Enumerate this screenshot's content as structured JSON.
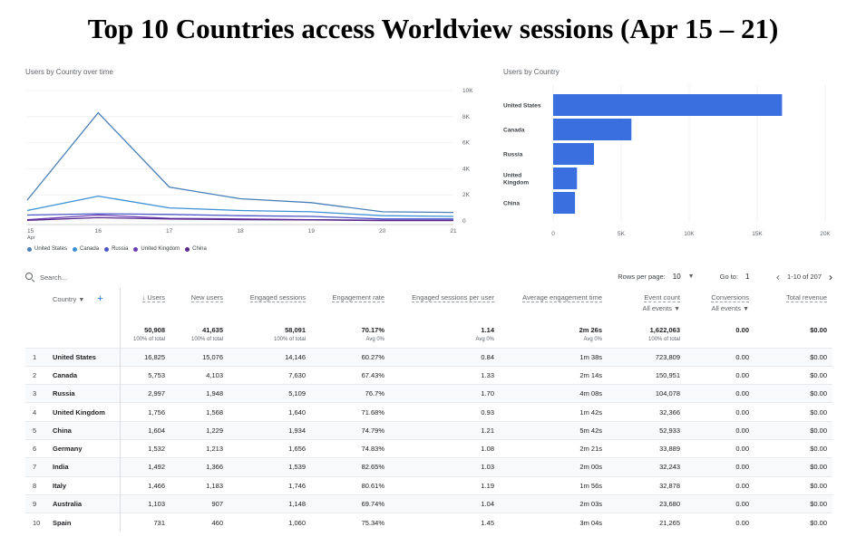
{
  "page_title": "Top 10 Countries access Worldview sessions (Apr 15 – 21)",
  "line_chart": {
    "title": "Users by Country over time",
    "x_labels": [
      "15",
      "16",
      "17",
      "18",
      "19",
      "20",
      "21"
    ],
    "x_sub_label": "Apr",
    "y_labels": [
      "10K",
      "8K",
      "6K",
      "4K",
      "2K",
      "0"
    ]
  },
  "bar_chart_title": "Users by Country",
  "legend": [
    {
      "name": "United States",
      "color": "#4a7fb8"
    },
    {
      "name": "Canada",
      "color": "#3b8fd6"
    },
    {
      "name": "Russia",
      "color": "#4b56c7"
    },
    {
      "name": "United Kingdom",
      "color": "#6a3fb5"
    },
    {
      "name": "China",
      "color": "#5a2a8a"
    }
  ],
  "chart_data": [
    {
      "type": "line",
      "title": "Users by Country over time",
      "x": [
        "Apr 15",
        "Apr 16",
        "Apr 17",
        "Apr 18",
        "Apr 19",
        "Apr 20",
        "Apr 21"
      ],
      "ylim": [
        0,
        10000
      ],
      "y_ticks": [
        0,
        2000,
        4000,
        6000,
        8000,
        10000
      ],
      "grid": true,
      "legend_placement": "bottom-left",
      "series": [
        {
          "name": "United States",
          "color": "#4a7fb8",
          "values": [
            1600,
            8300,
            2600,
            1700,
            1400,
            700,
            650
          ]
        },
        {
          "name": "Canada",
          "color": "#3b8fd6",
          "values": [
            800,
            1900,
            1000,
            800,
            700,
            400,
            350
          ]
        },
        {
          "name": "Russia",
          "color": "#4b56c7",
          "values": [
            450,
            550,
            500,
            400,
            350,
            150,
            150
          ]
        },
        {
          "name": "United Kingdom",
          "color": "#6a3fb5",
          "values": [
            100,
            450,
            200,
            150,
            100,
            50,
            50
          ]
        },
        {
          "name": "China",
          "color": "#5a2a8a",
          "values": [
            50,
            250,
            150,
            100,
            80,
            30,
            30
          ]
        }
      ]
    },
    {
      "type": "bar",
      "orientation": "horizontal",
      "title": "Users by Country",
      "categories": [
        "United States",
        "Canada",
        "Russia",
        "United Kingdom",
        "China"
      ],
      "category_labels": [
        [
          "United States"
        ],
        [
          "Canada"
        ],
        [
          "Russia"
        ],
        [
          "United",
          "Kingdom"
        ],
        [
          "China"
        ]
      ],
      "values": [
        16825,
        5753,
        2997,
        1756,
        1604
      ],
      "xlim": [
        0,
        20000
      ],
      "x_ticks": [
        0,
        5000,
        10000,
        15000,
        20000
      ],
      "x_tick_labels": [
        "0",
        "5K",
        "10K",
        "15K",
        "20K"
      ],
      "bar_color": "#3a6fe0"
    }
  ],
  "toolbar": {
    "search_placeholder": "Search...",
    "rows_per_page_label": "Rows per page:",
    "rows_per_page_value": "10",
    "goto_label": "Go to:",
    "goto_value": "1",
    "range_label": "1-10 of 207"
  },
  "table": {
    "headers": {
      "country": "Country",
      "users": "↓ Users",
      "new_users": "New users",
      "engaged_sessions": "Engaged sessions",
      "engagement_rate": "Engagement rate",
      "engaged_per_user": "Engaged sessions per user",
      "avg_engagement": "Average engagement time",
      "event_count": "Event count",
      "event_count_sub": "All events",
      "conversions": "Conversions",
      "conversions_sub": "All events",
      "total_revenue": "Total revenue"
    },
    "totals": {
      "users": "50,908",
      "users_sub": "100% of total",
      "new_users": "41,635",
      "new_users_sub": "100% of total",
      "engaged_sessions": "58,091",
      "engaged_sessions_sub": "100% of total",
      "engagement_rate": "70.17%",
      "engagement_rate_sub": "Avg 0%",
      "engaged_per_user": "1.14",
      "engaged_per_user_sub": "Avg 0%",
      "avg_engagement": "2m 26s",
      "avg_engagement_sub": "Avg 0%",
      "event_count": "1,622,063",
      "event_count_sub": "100% of total",
      "conversions": "0.00",
      "total_revenue": "$0.00"
    },
    "rows": [
      {
        "idx": "1",
        "country": "United States",
        "users": "16,825",
        "new_users": "15,076",
        "engaged_sessions": "14,146",
        "engagement_rate": "60.27%",
        "per_user": "0.84",
        "avg_time": "1m 38s",
        "events": "723,809",
        "conversions": "0.00",
        "revenue": "$0.00"
      },
      {
        "idx": "2",
        "country": "Canada",
        "users": "5,753",
        "new_users": "4,103",
        "engaged_sessions": "7,630",
        "engagement_rate": "67.43%",
        "per_user": "1.33",
        "avg_time": "2m 14s",
        "events": "150,951",
        "conversions": "0.00",
        "revenue": "$0.00"
      },
      {
        "idx": "3",
        "country": "Russia",
        "users": "2,997",
        "new_users": "1,948",
        "engaged_sessions": "5,109",
        "engagement_rate": "76.7%",
        "per_user": "1.70",
        "avg_time": "4m 08s",
        "events": "104,078",
        "conversions": "0.00",
        "revenue": "$0.00"
      },
      {
        "idx": "4",
        "country": "United Kingdom",
        "users": "1,756",
        "new_users": "1,568",
        "engaged_sessions": "1,640",
        "engagement_rate": "71.68%",
        "per_user": "0.93",
        "avg_time": "1m 42s",
        "events": "32,366",
        "conversions": "0.00",
        "revenue": "$0.00"
      },
      {
        "idx": "5",
        "country": "China",
        "users": "1,604",
        "new_users": "1,229",
        "engaged_sessions": "1,934",
        "engagement_rate": "74.79%",
        "per_user": "1.21",
        "avg_time": "5m 42s",
        "events": "52,933",
        "conversions": "0.00",
        "revenue": "$0.00"
      },
      {
        "idx": "6",
        "country": "Germany",
        "users": "1,532",
        "new_users": "1,213",
        "engaged_sessions": "1,656",
        "engagement_rate": "74.83%",
        "per_user": "1.08",
        "avg_time": "2m 21s",
        "events": "33,889",
        "conversions": "0.00",
        "revenue": "$0.00"
      },
      {
        "idx": "7",
        "country": "India",
        "users": "1,492",
        "new_users": "1,366",
        "engaged_sessions": "1,539",
        "engagement_rate": "82.65%",
        "per_user": "1.03",
        "avg_time": "2m 00s",
        "events": "32,243",
        "conversions": "0.00",
        "revenue": "$0.00"
      },
      {
        "idx": "8",
        "country": "Italy",
        "users": "1,466",
        "new_users": "1,183",
        "engaged_sessions": "1,746",
        "engagement_rate": "80.61%",
        "per_user": "1.19",
        "avg_time": "1m 56s",
        "events": "32,878",
        "conversions": "0.00",
        "revenue": "$0.00"
      },
      {
        "idx": "9",
        "country": "Australia",
        "users": "1,103",
        "new_users": "907",
        "engaged_sessions": "1,148",
        "engagement_rate": "69.74%",
        "per_user": "1.04",
        "avg_time": "2m 03s",
        "events": "23,680",
        "conversions": "0.00",
        "revenue": "$0.00"
      },
      {
        "idx": "10",
        "country": "Spain",
        "users": "731",
        "new_users": "460",
        "engaged_sessions": "1,060",
        "engagement_rate": "75.34%",
        "per_user": "1.45",
        "avg_time": "3m 04s",
        "events": "21,265",
        "conversions": "0.00",
        "revenue": "$0.00"
      }
    ]
  }
}
